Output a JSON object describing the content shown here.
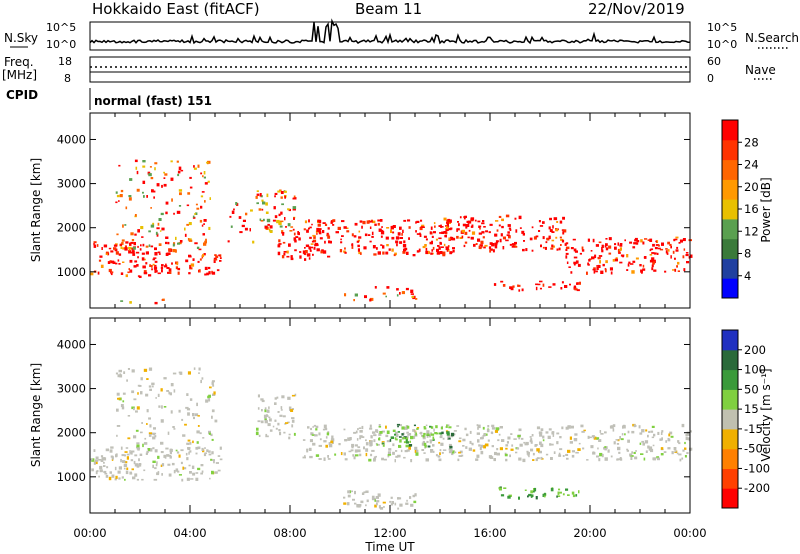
{
  "header": {
    "title": "Hokkaido East (fitACF)",
    "beam": "Beam 11",
    "date": "22/Nov/2019"
  },
  "side_labels": {
    "nsky": "N.Sky",
    "freq_line1": "Freq.",
    "freq_line2": "[MHz]",
    "cpid": "CPID",
    "nsearch": "N.Search",
    "nave": "Nave"
  },
  "noise_panel": {
    "left_ticks": [
      "10^5",
      "10^0"
    ],
    "right_ticks": [
      "10^5",
      "10^0"
    ]
  },
  "freq_panel": {
    "left_ticks": [
      "18",
      "8"
    ],
    "right_ticks": [
      "60",
      "0"
    ]
  },
  "cpid_panel": {
    "text": "normal (fast) 151"
  },
  "colors": {
    "power_scale": [
      "#0000ff",
      "#2040a0",
      "#3a7a3a",
      "#5aa050",
      "#e8c000",
      "#ff9900",
      "#ff6600",
      "#ff3300",
      "#ff0000"
    ],
    "velocity_scale": [
      "#2030c0",
      "#2a6a3a",
      "#3a9a3a",
      "#80d040",
      "#c0c0b0",
      "#f0b000",
      "#ff8000",
      "#ff4000",
      "#ff0000"
    ],
    "ground_gray": "#c0c0b8"
  },
  "chart_data": [
    {
      "type": "heatmap",
      "name": "power",
      "xlabel": "",
      "ylabel": "Slant Range [km]",
      "x_ticks": [
        "00:00",
        "04:00",
        "08:00",
        "12:00",
        "16:00",
        "20:00",
        "00:00"
      ],
      "y_ticks": [
        1000,
        2000,
        3000,
        4000
      ],
      "xlim_hours": [
        0,
        24
      ],
      "ylim": [
        180,
        4600
      ],
      "colorbar": {
        "label": "Power [dB]",
        "ticks": [
          4,
          8,
          12,
          16,
          20,
          24,
          28
        ]
      },
      "bands": [
        {
          "x": [
            0.0,
            3.2
          ],
          "y": [
            900,
            1700
          ],
          "level": "strong"
        },
        {
          "x": [
            3.0,
            5.2
          ],
          "y": [
            950,
            1450
          ],
          "level": "strong"
        },
        {
          "x": [
            1.0,
            4.8
          ],
          "y": [
            1500,
            3600
          ],
          "level": "moderate"
        },
        {
          "x": [
            5.5,
            6.5
          ],
          "y": [
            1700,
            2600
          ],
          "level": "moderate"
        },
        {
          "x": [
            6.6,
            8.2
          ],
          "y": [
            1900,
            2900
          ],
          "level": "mixed"
        },
        {
          "x": [
            7.5,
            9.5
          ],
          "y": [
            1300,
            2000
          ],
          "level": "strong"
        },
        {
          "x": [
            8.5,
            14.5
          ],
          "y": [
            1400,
            2200
          ],
          "level": "strong"
        },
        {
          "x": [
            14.0,
            19.0
          ],
          "y": [
            1500,
            2300
          ],
          "level": "strong"
        },
        {
          "x": [
            19.0,
            24.0
          ],
          "y": [
            1000,
            1800
          ],
          "level": "strong"
        },
        {
          "x": [
            16.0,
            19.6
          ],
          "y": [
            600,
            800
          ],
          "level": "strong"
        },
        {
          "x": [
            0.0,
            3.0
          ],
          "y": [
            300,
            400
          ],
          "level": "moderate"
        },
        {
          "x": [
            10.0,
            13.0
          ],
          "y": [
            300,
            700
          ],
          "level": "moderate"
        }
      ]
    },
    {
      "type": "heatmap",
      "name": "velocity",
      "xlabel": "Time UT",
      "ylabel": "Slant Range [km]",
      "x_ticks": [
        "00:00",
        "04:00",
        "08:00",
        "12:00",
        "16:00",
        "20:00",
        "00:00"
      ],
      "y_ticks": [
        1000,
        2000,
        3000,
        4000
      ],
      "xlim_hours": [
        0,
        24
      ],
      "ylim": [
        180,
        4600
      ],
      "colorbar": {
        "label": "Velocity [m s⁻¹]",
        "ticks": [
          200,
          100,
          50,
          15,
          -15,
          -50,
          -100,
          -200
        ]
      },
      "bands": [
        {
          "x": [
            0.0,
            5.2
          ],
          "y": [
            950,
            1700
          ],
          "level": "ground"
        },
        {
          "x": [
            1.0,
            5.0
          ],
          "y": [
            1500,
            3500
          ],
          "level": "ground_sparse"
        },
        {
          "x": [
            6.6,
            8.2
          ],
          "y": [
            1900,
            2900
          ],
          "level": "ground"
        },
        {
          "x": [
            8.5,
            24.0
          ],
          "y": [
            1400,
            2200
          ],
          "level": "ground"
        },
        {
          "x": [
            11.5,
            14.5
          ],
          "y": [
            1700,
            2200
          ],
          "level": "positive"
        },
        {
          "x": [
            16.0,
            19.6
          ],
          "y": [
            550,
            800
          ],
          "level": "positive"
        },
        {
          "x": [
            10.0,
            13.0
          ],
          "y": [
            300,
            700
          ],
          "level": "ground"
        }
      ]
    }
  ]
}
